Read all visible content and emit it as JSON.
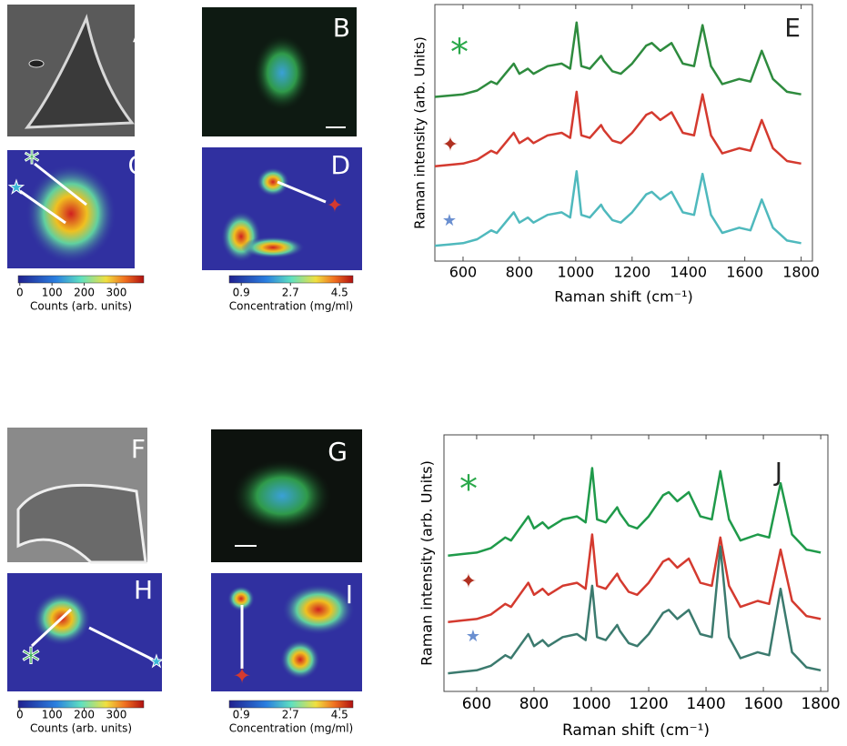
{
  "chart_data": [
    {
      "type": "line",
      "x_label": "Raman shift (cm⁻¹)",
      "y_label": "Raman intensity (arb. Units)",
      "xlim": [
        500,
        1840
      ],
      "xticks": [
        600,
        800,
        1000,
        1200,
        1400,
        1600,
        1800
      ],
      "ylim": [
        0,
        10
      ],
      "x": [
        500,
        550,
        600,
        650,
        700,
        720,
        750,
        780,
        800,
        830,
        850,
        900,
        950,
        980,
        1003,
        1020,
        1050,
        1090,
        1100,
        1130,
        1160,
        1200,
        1250,
        1270,
        1300,
        1340,
        1380,
        1420,
        1450,
        1480,
        1520,
        1580,
        1620,
        1660,
        1700,
        1750,
        1800
      ],
      "series": [
        {
          "color": "#2e8b3e",
          "values": [
            6.4,
            6.45,
            6.5,
            6.65,
            7.0,
            6.9,
            7.3,
            7.7,
            7.3,
            7.5,
            7.3,
            7.6,
            7.7,
            7.5,
            9.3,
            7.6,
            7.5,
            8.0,
            7.8,
            7.4,
            7.3,
            7.7,
            8.4,
            8.5,
            8.2,
            8.5,
            7.7,
            7.6,
            9.2,
            7.6,
            6.9,
            7.1,
            7.0,
            8.2,
            7.1,
            6.6,
            6.5
          ]
        },
        {
          "color": "#d43a2f",
          "values": [
            3.7,
            3.75,
            3.8,
            3.95,
            4.3,
            4.2,
            4.6,
            5.0,
            4.6,
            4.8,
            4.6,
            4.9,
            5.0,
            4.8,
            6.6,
            4.9,
            4.8,
            5.3,
            5.1,
            4.7,
            4.6,
            5.0,
            5.7,
            5.8,
            5.5,
            5.8,
            5.0,
            4.9,
            6.5,
            4.9,
            4.2,
            4.4,
            4.3,
            5.5,
            4.4,
            3.9,
            3.8
          ]
        },
        {
          "color": "#4fb9bd",
          "values": [
            0.6,
            0.65,
            0.7,
            0.85,
            1.2,
            1.1,
            1.5,
            1.9,
            1.5,
            1.7,
            1.5,
            1.8,
            1.9,
            1.7,
            3.5,
            1.8,
            1.7,
            2.2,
            2.0,
            1.6,
            1.5,
            1.9,
            2.6,
            2.7,
            2.4,
            2.7,
            1.9,
            1.8,
            3.4,
            1.8,
            1.1,
            1.3,
            1.2,
            2.4,
            1.3,
            0.8,
            0.7
          ]
        }
      ]
    },
    {
      "type": "line",
      "x_label": "Raman shift (cm⁻¹)",
      "y_label": "Raman intensity (arb. Units)",
      "xlim": [
        486,
        1825
      ],
      "xticks": [
        600,
        800,
        1000,
        1200,
        1400,
        1600,
        1800
      ],
      "ylim": [
        0,
        8.5
      ],
      "x": [
        500,
        550,
        600,
        650,
        700,
        720,
        750,
        780,
        800,
        830,
        850,
        900,
        950,
        980,
        1003,
        1020,
        1050,
        1090,
        1100,
        1130,
        1160,
        1200,
        1250,
        1270,
        1300,
        1340,
        1380,
        1420,
        1450,
        1480,
        1520,
        1580,
        1620,
        1660,
        1700,
        1750,
        1800
      ],
      "series": [
        {
          "color": "#1f9a4a",
          "values": [
            4.5,
            4.55,
            4.6,
            4.75,
            5.1,
            5.0,
            5.4,
            5.8,
            5.4,
            5.6,
            5.4,
            5.7,
            5.8,
            5.6,
            7.4,
            5.7,
            5.6,
            6.1,
            5.9,
            5.5,
            5.4,
            5.8,
            6.5,
            6.6,
            6.3,
            6.6,
            5.8,
            5.7,
            7.3,
            5.7,
            5.0,
            5.2,
            5.1,
            6.9,
            5.2,
            4.7,
            4.6
          ]
        },
        {
          "color": "#d43a2f",
          "values": [
            2.3,
            2.35,
            2.4,
            2.55,
            2.9,
            2.8,
            3.2,
            3.6,
            3.2,
            3.4,
            3.2,
            3.5,
            3.6,
            3.4,
            5.2,
            3.5,
            3.4,
            3.9,
            3.7,
            3.3,
            3.2,
            3.6,
            4.3,
            4.4,
            4.1,
            4.4,
            3.6,
            3.5,
            5.1,
            3.5,
            2.8,
            3.0,
            2.9,
            4.7,
            3.0,
            2.5,
            2.4
          ]
        },
        {
          "color": "#3b7a6e",
          "values": [
            0.6,
            0.65,
            0.7,
            0.85,
            1.2,
            1.1,
            1.5,
            1.9,
            1.5,
            1.7,
            1.5,
            1.8,
            1.9,
            1.7,
            3.5,
            1.8,
            1.7,
            2.2,
            2.0,
            1.6,
            1.5,
            1.9,
            2.6,
            2.7,
            2.4,
            2.7,
            1.9,
            1.8,
            4.8,
            1.8,
            1.1,
            1.3,
            1.2,
            3.4,
            1.3,
            0.8,
            0.7
          ]
        }
      ]
    }
  ],
  "colorbars": [
    {
      "label": "Counts (arb. units)",
      "lim": [
        -5,
        385
      ],
      "ticks": [
        0,
        100,
        200,
        300
      ]
    },
    {
      "label": "Concentration (mg/ml)",
      "lim": [
        0.46,
        4.99
      ],
      "ticks": [
        0.9,
        2.7,
        4.5
      ]
    },
    {
      "label": "Counts (arb. units)",
      "lim": [
        -5,
        385
      ],
      "ticks": [
        0,
        100,
        200,
        300
      ]
    },
    {
      "label": "Concentration (mg/ml)",
      "lim": [
        0.46,
        4.99
      ],
      "ticks": [
        0.9,
        2.7,
        4.5
      ]
    }
  ],
  "panel_labels": [
    "A",
    "B",
    "C",
    "D",
    "E",
    "F",
    "G",
    "H",
    "I",
    "J"
  ]
}
